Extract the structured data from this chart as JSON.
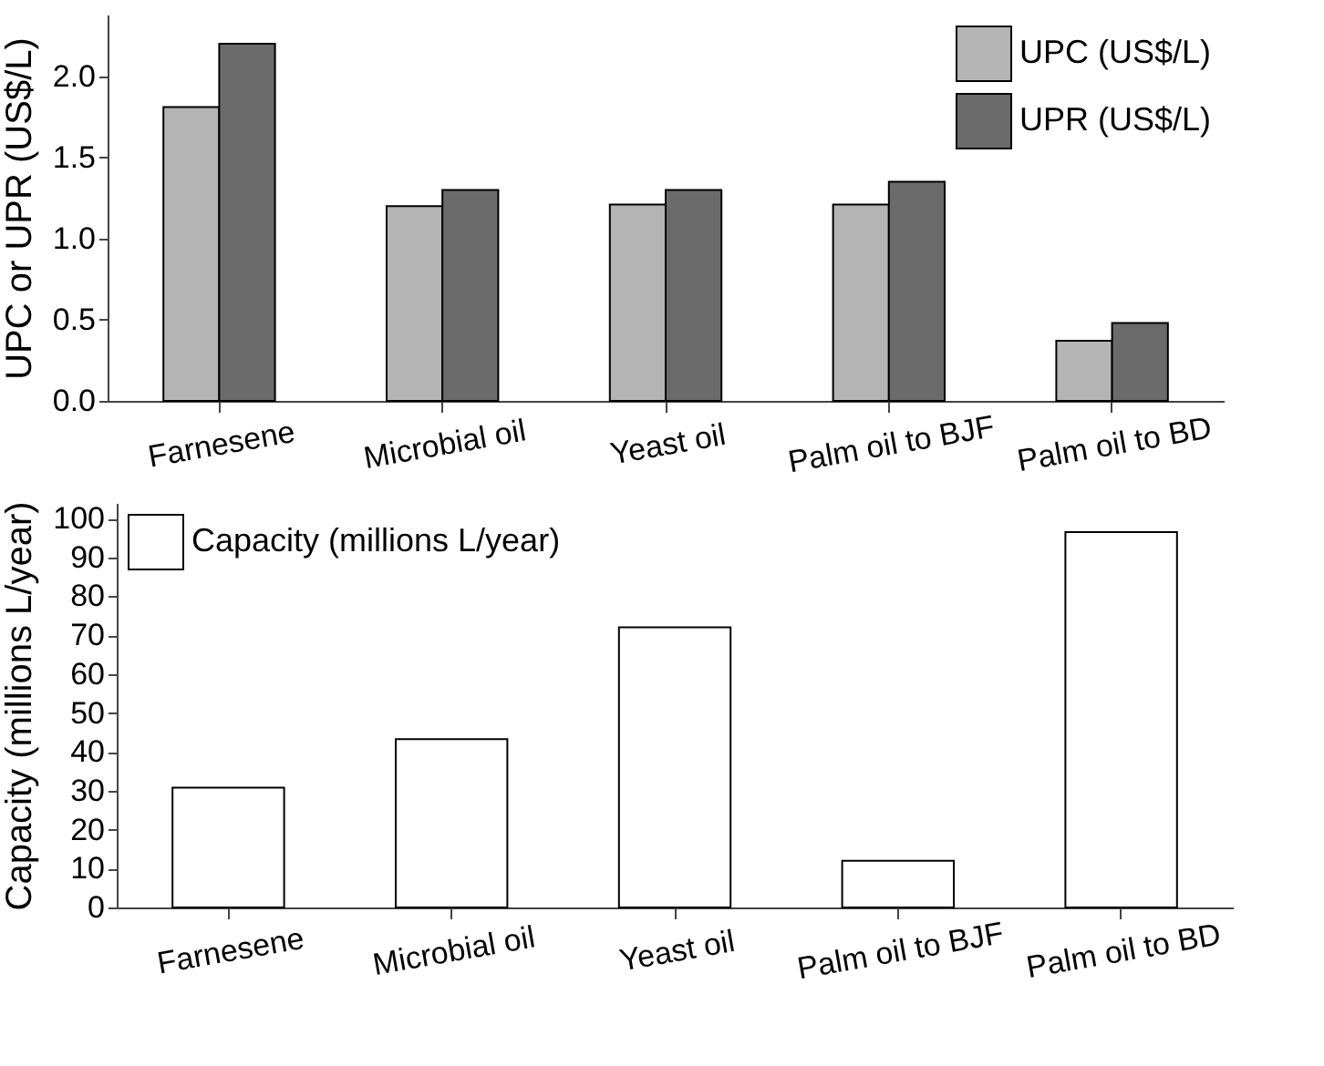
{
  "chart_data": [
    {
      "type": "bar",
      "categories": [
        "Farnesene",
        "Microbial oil",
        "Yeast oil",
        "Palm oil to BJF",
        "Palm oil to BD"
      ],
      "ylabel": "UPC or UPR (US$/L)",
      "ylim": [
        0,
        2.38
      ],
      "yticks": [
        {
          "value": 0,
          "label": "0.0"
        },
        0.5,
        {
          "value": 1,
          "label": "1.0"
        },
        1.5,
        {
          "value": 2,
          "label": "2.0"
        }
      ],
      "legend": "top right",
      "grid": false,
      "series": [
        {
          "name": "UPC (US$/L)",
          "color": "#b4b4b4",
          "values": [
            1.81,
            1.2,
            1.21,
            1.21,
            0.37
          ]
        },
        {
          "name": "UPR (US$/L)",
          "color": "#6b6b6b",
          "values": [
            2.2,
            1.3,
            1.3,
            1.35,
            0.48
          ]
        }
      ]
    },
    {
      "type": "bar",
      "categories": [
        "Farnesene",
        "Microbial oil",
        "Yeast oil",
        "Palm oil to BJF",
        "Palm oil to BD"
      ],
      "ylabel": "Capacity (millions L/year)",
      "ylim": [
        0,
        104
      ],
      "yticks": [
        0,
        10,
        20,
        30,
        40,
        50,
        60,
        70,
        80,
        90,
        100
      ],
      "legend": "top left",
      "grid": false,
      "series": [
        {
          "name": "Capacity (millions L/year)",
          "color": "#ffffff",
          "values": [
            30.8,
            43.3,
            72,
            12,
            96.5
          ]
        }
      ]
    }
  ]
}
